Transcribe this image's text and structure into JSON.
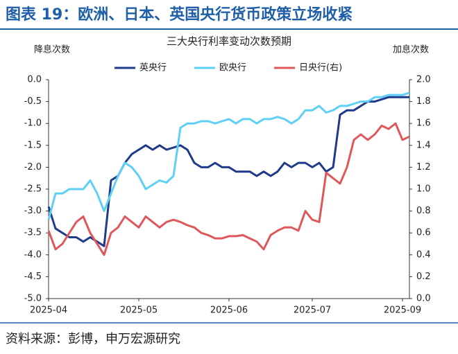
{
  "header": {
    "title": "图表 19：欧洲、日本、英国央行货币政策立场收紧"
  },
  "chart_data": {
    "type": "line",
    "title": "三大央行利率变动次数预期",
    "y_label": "降息次数",
    "y2_label": "加息次数",
    "categories": [
      "2025-04",
      null,
      null,
      null,
      null,
      null,
      null,
      null,
      null,
      null,
      null,
      null,
      null,
      "2025-05",
      null,
      null,
      null,
      null,
      null,
      null,
      null,
      null,
      null,
      null,
      null,
      null,
      "2025-06",
      null,
      null,
      null,
      null,
      null,
      null,
      null,
      null,
      null,
      null,
      null,
      "2025-07",
      null,
      null,
      null,
      null,
      null,
      null,
      null,
      null,
      null,
      null,
      null,
      null,
      "2025-09",
      null
    ],
    "series": [
      {
        "name": "英央行",
        "color": "#1f3a8a",
        "axis": "y",
        "values": [
          -2.9,
          -3.4,
          -3.5,
          -3.6,
          -3.6,
          -3.7,
          -3.6,
          -3.7,
          -3.8,
          -2.3,
          -2.2,
          -1.9,
          -1.7,
          -1.6,
          -1.5,
          -1.6,
          -1.5,
          -1.6,
          -1.55,
          -1.5,
          -1.6,
          -1.9,
          -2.0,
          -2.0,
          -1.9,
          -2.0,
          -2.0,
          -2.1,
          -2.1,
          -2.1,
          -2.2,
          -2.1,
          -2.2,
          -2.1,
          -1.9,
          -2.0,
          -1.9,
          -1.9,
          -2.0,
          -1.9,
          -2.1,
          -2.0,
          -0.8,
          -0.7,
          -0.7,
          -0.6,
          -0.5,
          -0.5,
          -0.45,
          -0.4,
          -0.4,
          -0.4,
          -0.4
        ]
      },
      {
        "name": "欧央行",
        "color": "#5fd0f5",
        "axis": "y",
        "values": [
          -3.2,
          -2.6,
          -2.6,
          -2.5,
          -2.5,
          -2.5,
          -2.3,
          -2.6,
          -3.0,
          -2.6,
          -2.2,
          -1.9,
          -2.0,
          -2.2,
          -2.5,
          -2.4,
          -2.3,
          -2.35,
          -2.2,
          -1.1,
          -1.0,
          -1.0,
          -0.95,
          -0.95,
          -1.0,
          -0.95,
          -0.9,
          -1.0,
          -0.9,
          -0.9,
          -1.0,
          -0.9,
          -0.9,
          -0.85,
          -0.9,
          -1.0,
          -0.9,
          -0.7,
          -0.7,
          -0.6,
          -0.75,
          -0.7,
          -0.6,
          -0.6,
          -0.55,
          -0.5,
          -0.5,
          -0.4,
          -0.4,
          -0.35,
          -0.35,
          -0.35,
          -0.3
        ]
      },
      {
        "name": "日央行(右)",
        "color": "#e0575a",
        "axis": "y2",
        "values": [
          0.62,
          0.45,
          0.5,
          0.6,
          0.7,
          0.75,
          0.6,
          0.5,
          0.4,
          0.6,
          0.65,
          0.75,
          0.7,
          0.65,
          0.75,
          0.7,
          0.65,
          0.7,
          0.72,
          0.7,
          0.67,
          0.65,
          0.6,
          0.58,
          0.55,
          0.55,
          0.57,
          0.57,
          0.58,
          0.55,
          0.52,
          0.45,
          0.58,
          0.62,
          0.65,
          0.65,
          0.62,
          0.8,
          0.72,
          0.7,
          1.15,
          1.1,
          1.05,
          1.2,
          1.45,
          1.5,
          1.45,
          1.5,
          1.58,
          1.55,
          1.6,
          1.45,
          1.48
        ]
      }
    ],
    "ylim": [
      -5,
      0
    ],
    "yticks": [
      {
        "value": 0,
        "label": "0.0"
      },
      -0.5,
      {
        "value": -1,
        "label": "-1.0"
      },
      -1.5,
      {
        "value": -2,
        "label": "-2.0"
      },
      -2.5,
      {
        "value": -3,
        "label": "-3.0"
      },
      -3.5,
      {
        "value": -4,
        "label": "-4.0"
      },
      -4.5,
      {
        "value": -5,
        "label": "-5.0"
      }
    ],
    "y2lim": [
      0,
      2
    ],
    "y2ticks": [
      {
        "value": 2,
        "label": "2.0"
      },
      1.8,
      1.6,
      1.4,
      1.2,
      {
        "value": 1,
        "label": "1.0"
      },
      0.8,
      0.6,
      0.4,
      0.2,
      {
        "value": 0,
        "label": "0.0"
      }
    ],
    "grid": false,
    "legend": "top"
  },
  "footer": {
    "source": "资料来源：彭博，申万宏源研究"
  }
}
